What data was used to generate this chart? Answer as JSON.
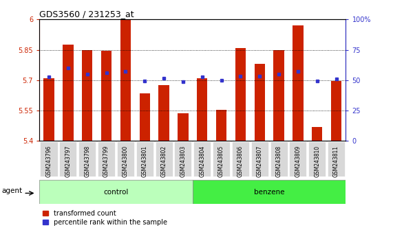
{
  "title": "GDS3560 / 231253_at",
  "categories": [
    "GSM243796",
    "GSM243797",
    "GSM243798",
    "GSM243799",
    "GSM243800",
    "GSM243801",
    "GSM243802",
    "GSM243803",
    "GSM243804",
    "GSM243805",
    "GSM243806",
    "GSM243807",
    "GSM243808",
    "GSM243809",
    "GSM243810",
    "GSM243811"
  ],
  "bar_values": [
    5.71,
    5.875,
    5.85,
    5.845,
    6.0,
    5.635,
    5.675,
    5.535,
    5.71,
    5.555,
    5.86,
    5.78,
    5.85,
    5.97,
    5.47,
    5.695
  ],
  "dot_values_left": [
    5.715,
    5.76,
    5.73,
    5.735,
    5.745,
    5.695,
    5.71,
    5.693,
    5.715,
    5.698,
    5.72,
    5.72,
    5.73,
    5.745,
    5.695,
    5.705
  ],
  "ylim_left": [
    5.4,
    6.0
  ],
  "ylim_right": [
    0,
    100
  ],
  "yticks_left": [
    5.4,
    5.55,
    5.7,
    5.85,
    6.0
  ],
  "yticks_right": [
    0,
    25,
    50,
    75,
    100
  ],
  "ytick_labels_left": [
    "5.4",
    "5.55",
    "5.7",
    "5.85",
    "6"
  ],
  "ytick_labels_right": [
    "0",
    "25",
    "50",
    "75",
    "100%"
  ],
  "bar_color": "#CC2200",
  "dot_color": "#3333CC",
  "control_color": "#BBFFBB",
  "benzene_color": "#44EE44",
  "control_label": "control",
  "benzene_label": "benzene",
  "agent_label": "agent",
  "legend_bar_label": "transformed count",
  "legend_dot_label": "percentile rank within the sample",
  "n_control": 8,
  "n_benzene": 8
}
